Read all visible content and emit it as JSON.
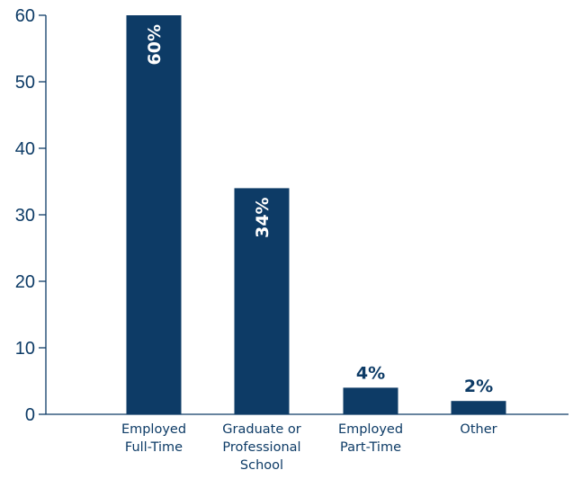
{
  "chart_data": {
    "type": "bar",
    "categories": [
      [
        "Employed",
        "Full-Time"
      ],
      [
        "Graduate or",
        "Professional",
        "School"
      ],
      [
        "Employed",
        "Part-Time"
      ],
      [
        "Other"
      ]
    ],
    "values": [
      60,
      34,
      4,
      2
    ],
    "data_labels": [
      "60%",
      "34%",
      "4%",
      "2%"
    ],
    "ylim": [
      0,
      60
    ],
    "yticks": [
      0,
      10,
      20,
      30,
      40,
      50,
      60
    ],
    "title": "",
    "xlabel": "",
    "ylabel": "",
    "grid": false,
    "colors": {
      "bar": "#0d3b66",
      "axis": "#0d3b66",
      "label_inside": "#ffffff",
      "label_outside": "#0d3b66"
    }
  }
}
